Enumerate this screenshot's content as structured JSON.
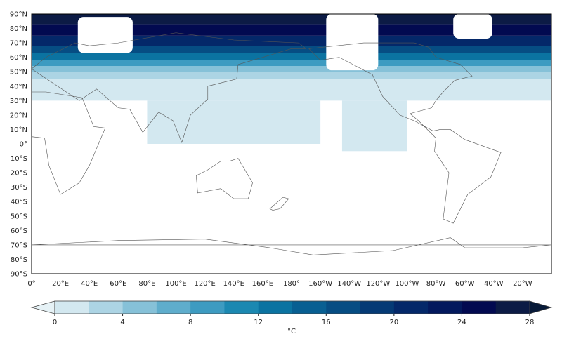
{
  "chart_data": {
    "type": "heatmap",
    "projection": "PlateCarree, central longitude 180",
    "x_ticks": [
      "0°",
      "20°E",
      "40°E",
      "60°E",
      "80°E",
      "100°E",
      "120°E",
      "140°E",
      "160°E",
      "180°",
      "160°W",
      "140°W",
      "120°W",
      "100°W",
      "80°W",
      "60°W",
      "40°W",
      "20°W"
    ],
    "x_tick_values": [
      0,
      20,
      40,
      60,
      80,
      100,
      120,
      140,
      160,
      180,
      200,
      220,
      240,
      260,
      280,
      300,
      320,
      340
    ],
    "y_ticks": [
      "90°N",
      "80°N",
      "70°N",
      "60°N",
      "50°N",
      "40°N",
      "30°N",
      "20°N",
      "10°N",
      "0°",
      "10°S",
      "20°S",
      "30°S",
      "40°S",
      "50°S",
      "60°S",
      "70°S",
      "80°S",
      "90°S"
    ],
    "y_tick_values": [
      90,
      80,
      70,
      60,
      50,
      40,
      30,
      20,
      10,
      0,
      -10,
      -20,
      -30,
      -40,
      -50,
      -60,
      -70,
      -80,
      -90
    ],
    "xlim": [
      0,
      360
    ],
    "ylim": [
      -90,
      90
    ],
    "colorbar": {
      "label": "°C",
      "levels": [
        0,
        2,
        4,
        6,
        8,
        10,
        12,
        14,
        16,
        18,
        20,
        22,
        24,
        26,
        28
      ],
      "tick_labels": [
        "0",
        "4",
        "8",
        "12",
        "16",
        "20",
        "24",
        "28"
      ],
      "tick_values": [
        0,
        4,
        8,
        12,
        16,
        20,
        24,
        28
      ],
      "extend": "both",
      "colors": [
        "#d3e8f0",
        "#acd4e4",
        "#86c1d8",
        "#5fadcc",
        "#3d9bc1",
        "#1b88b1",
        "#0b73a1",
        "#085f92",
        "#064d83",
        "#053a75",
        "#042869",
        "#03195d",
        "#020a50",
        "#0c1b45"
      ]
    },
    "fields": [
      {
        "level": 0,
        "lon": [
          0,
          360
        ],
        "lat": [
          30,
          45
        ]
      },
      {
        "level": 0,
        "lon": [
          80,
          200
        ],
        "lat": [
          0,
          30
        ]
      },
      {
        "level": 0,
        "lon": [
          215,
          260
        ],
        "lat": [
          -5,
          30
        ]
      },
      {
        "level": 2,
        "lon": [
          0,
          360
        ],
        "lat": [
          45,
          50
        ]
      },
      {
        "level": 4,
        "lon": [
          0,
          360
        ],
        "lat": [
          50,
          54
        ]
      },
      {
        "level": 8,
        "lon": [
          0,
          360
        ],
        "lat": [
          54,
          58
        ]
      },
      {
        "level": 12,
        "lon": [
          0,
          360
        ],
        "lat": [
          58,
          63
        ]
      },
      {
        "level": 16,
        "lon": [
          0,
          360
        ],
        "lat": [
          63,
          68
        ]
      },
      {
        "level": 20,
        "lon": [
          0,
          360
        ],
        "lat": [
          68,
          75
        ]
      },
      {
        "level": 24,
        "lon": [
          0,
          360
        ],
        "lat": [
          75,
          83
        ]
      },
      {
        "level": 26,
        "lon": [
          0,
          360
        ],
        "lat": [
          83,
          90
        ]
      }
    ],
    "masked": [
      {
        "lon": [
          32,
          70
        ],
        "lat": [
          63,
          88
        ]
      },
      {
        "lon": [
          204,
          240
        ],
        "lat": [
          51,
          90
        ]
      },
      {
        "lon": [
          292,
          319
        ],
        "lat": [
          73,
          90
        ]
      }
    ]
  }
}
